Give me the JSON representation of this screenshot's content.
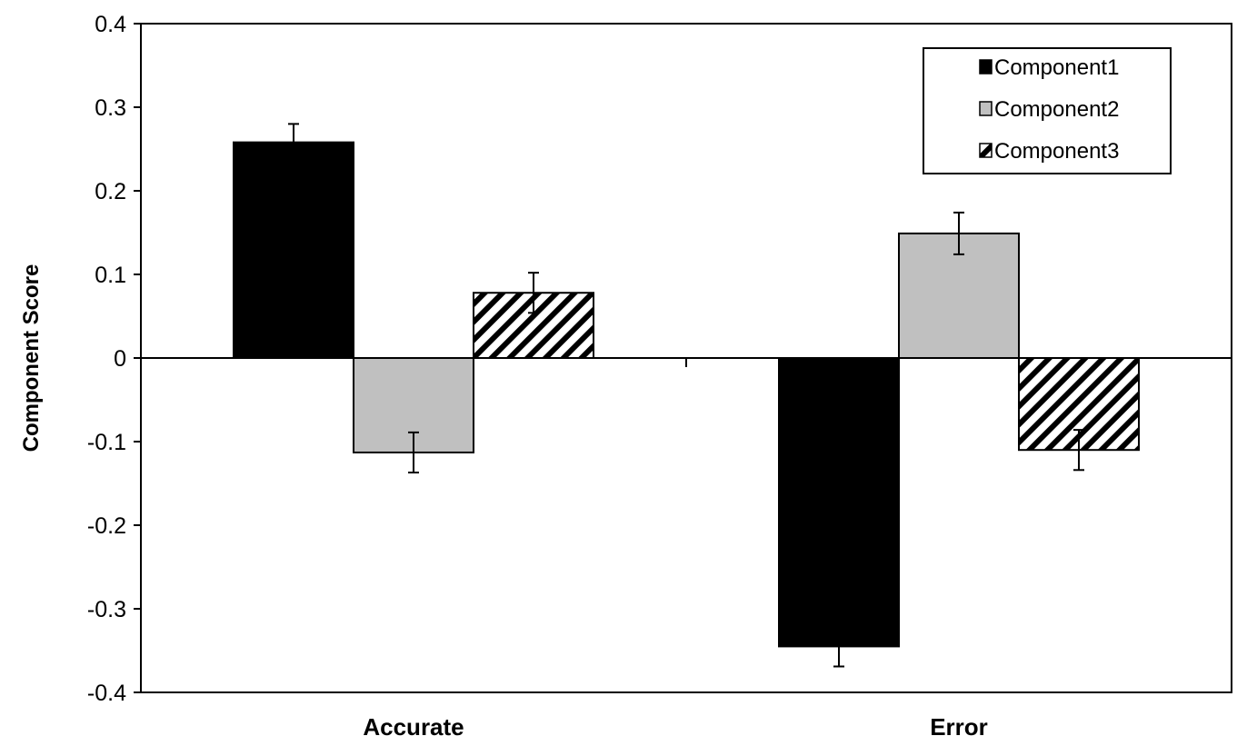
{
  "chart_data": {
    "type": "bar",
    "title": "",
    "xlabel": "",
    "ylabel": "Component Score",
    "ylim": [
      -0.4,
      0.4
    ],
    "yticks": [
      -0.4,
      -0.3,
      -0.2,
      -0.1,
      0,
      0.1,
      0.2,
      0.3,
      0.4
    ],
    "ytick_labels": [
      "-0.4",
      "-0.3",
      "-0.2",
      "-0.1",
      "0",
      "0.1",
      "0.2",
      "0.3",
      "0.4"
    ],
    "categories": [
      "Accurate",
      "Error"
    ],
    "series": [
      {
        "name": "Component1",
        "values": [
          0.258,
          -0.345
        ],
        "errors": [
          0.022,
          0.024
        ],
        "fill": "#000000",
        "pattern": "solid"
      },
      {
        "name": "Component2",
        "values": [
          -0.113,
          0.149
        ],
        "errors": [
          0.024,
          0.025
        ],
        "fill": "#c0c0c0",
        "pattern": "solid"
      },
      {
        "name": "Component3",
        "values": [
          0.078,
          -0.11
        ],
        "errors": [
          0.024,
          0.024
        ],
        "fill": "#ffffff",
        "pattern": "diagonal-hatch"
      }
    ],
    "grid": false,
    "legend_position": "top-right"
  }
}
